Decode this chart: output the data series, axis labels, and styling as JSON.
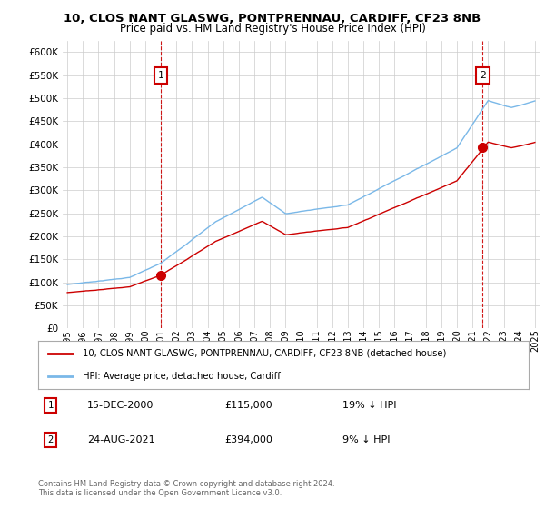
{
  "title1": "10, CLOS NANT GLASWG, PONTPRENNAU, CARDIFF, CF23 8NB",
  "title2": "Price paid vs. HM Land Registry's House Price Index (HPI)",
  "plot_bg_color": "#ffffff",
  "hpi_color": "#7ab8e8",
  "sale_color": "#cc0000",
  "vline_color": "#cc0000",
  "ylim": [
    0,
    625000
  ],
  "yticks": [
    0,
    50000,
    100000,
    150000,
    200000,
    250000,
    300000,
    350000,
    400000,
    450000,
    500000,
    550000,
    600000
  ],
  "sale1_year": 2001.0,
  "sale1_price": 115000,
  "sale1_label": "1",
  "sale2_year": 2021.65,
  "sale2_price": 394000,
  "sale2_label": "2",
  "legend_sale_label": "10, CLOS NANT GLASWG, PONTPRENNAU, CARDIFF, CF23 8NB (detached house)",
  "legend_hpi_label": "HPI: Average price, detached house, Cardiff",
  "note1_label": "1",
  "note1_date": "15-DEC-2000",
  "note1_price": "£115,000",
  "note1_hpi": "19% ↓ HPI",
  "note2_label": "2",
  "note2_date": "24-AUG-2021",
  "note2_price": "£394,000",
  "note2_hpi": "9% ↓ HPI",
  "footer": "Contains HM Land Registry data © Crown copyright and database right 2024.\nThis data is licensed under the Open Government Licence v3.0."
}
